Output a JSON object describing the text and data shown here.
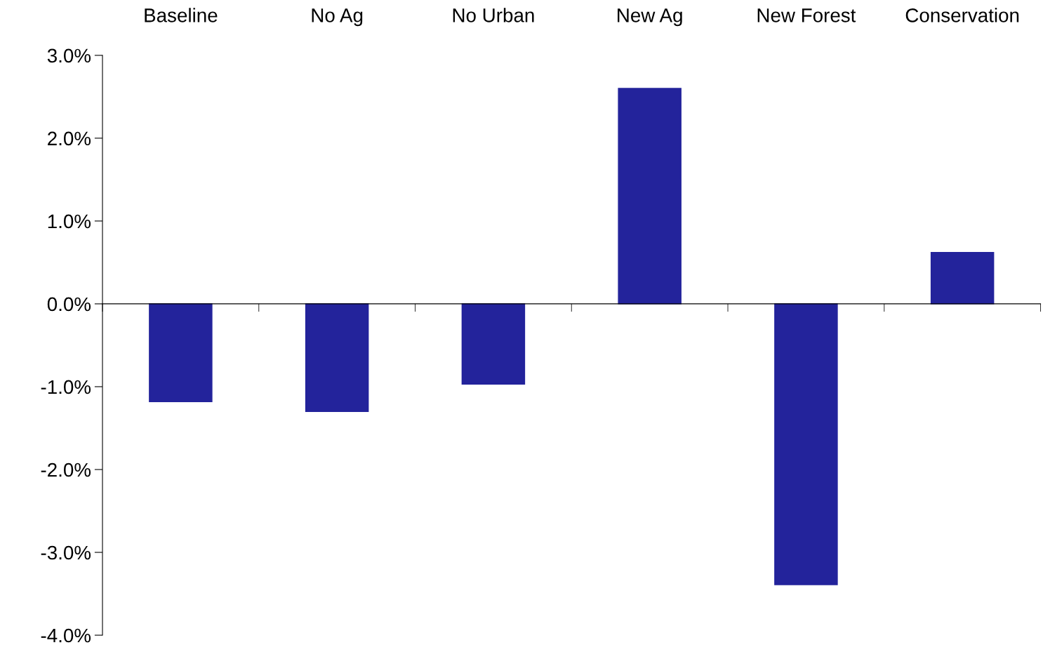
{
  "chart_data": {
    "type": "bar",
    "categories": [
      "Baseline",
      "No Ag",
      "No Urban",
      "New Ag",
      "New Forest",
      "Conservation"
    ],
    "values": [
      -1.18,
      -1.3,
      -0.97,
      2.6,
      -3.39,
      0.62
    ],
    "color": "#23239b",
    "ylim": [
      -4,
      3
    ],
    "yticks": [
      {
        "value": -4,
        "label": "-4.0%"
      },
      {
        "value": -3,
        "label": "-3.0%"
      },
      {
        "value": -2,
        "label": "-2.0%"
      },
      {
        "value": -1,
        "label": "-1.0%"
      },
      {
        "value": 0,
        "label": "0.0%"
      },
      {
        "value": 1,
        "label": "1.0%"
      },
      {
        "value": 2,
        "label": "2.0%"
      },
      {
        "value": 3,
        "label": "3.0%"
      }
    ],
    "legend": false
  }
}
